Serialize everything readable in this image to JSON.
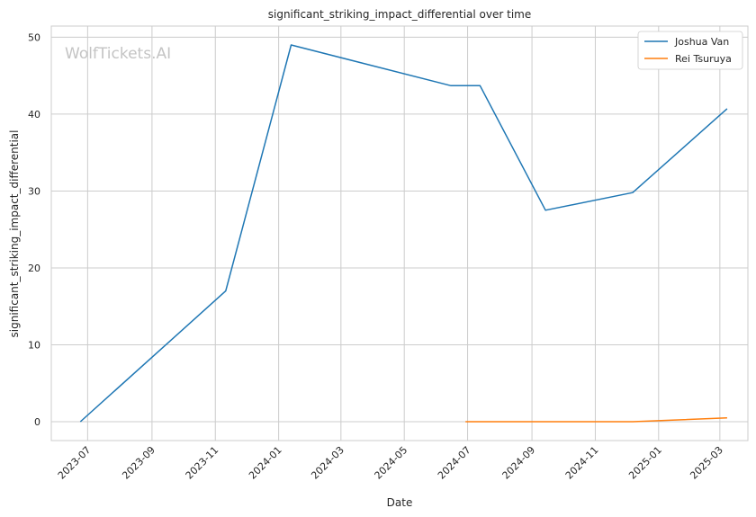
{
  "chart_data": {
    "type": "line",
    "title": "significant_striking_impact_differential over time",
    "xlabel": "Date",
    "ylabel": "significant_striking_impact_differential",
    "watermark": "WolfTickets.AI",
    "grid": true,
    "legend_position": "top-right",
    "xlim": [
      "2023-05-27",
      "2025-03-28"
    ],
    "ylim": [
      -2.45,
      51.45
    ],
    "x_ticks": [
      "2023-07-01",
      "2023-09-01",
      "2023-11-01",
      "2024-01-01",
      "2024-03-01",
      "2024-05-01",
      "2024-07-01",
      "2024-09-01",
      "2024-11-01",
      "2025-01-01",
      "2025-03-01"
    ],
    "x_tick_labels": [
      "2023-07",
      "2023-09",
      "2023-11",
      "2024-01",
      "2024-03",
      "2024-05",
      "2024-07",
      "2024-09",
      "2024-11",
      "2025-01",
      "2025-03"
    ],
    "y_ticks": [
      0,
      10,
      20,
      30,
      40,
      50
    ],
    "y_tick_labels": [
      "0",
      "10",
      "20",
      "30",
      "40",
      "50"
    ],
    "series": [
      {
        "name": "Joshua Van",
        "color": "#1f77b4",
        "points": [
          {
            "x": "2023-06-24",
            "y": 0.0
          },
          {
            "x": "2023-11-11",
            "y": 17.0
          },
          {
            "x": "2024-01-13",
            "y": 49.0
          },
          {
            "x": "2024-06-15",
            "y": 43.7
          },
          {
            "x": "2024-07-13",
            "y": 43.7
          },
          {
            "x": "2024-09-14",
            "y": 27.5
          },
          {
            "x": "2024-12-07",
            "y": 29.8
          },
          {
            "x": "2025-03-08",
            "y": 40.7
          }
        ]
      },
      {
        "name": "Rei Tsuruya",
        "color": "#ff7f0e",
        "points": [
          {
            "x": "2024-06-29",
            "y": 0.0
          },
          {
            "x": "2024-12-07",
            "y": 0.0
          },
          {
            "x": "2025-03-08",
            "y": 0.5
          }
        ]
      }
    ]
  }
}
